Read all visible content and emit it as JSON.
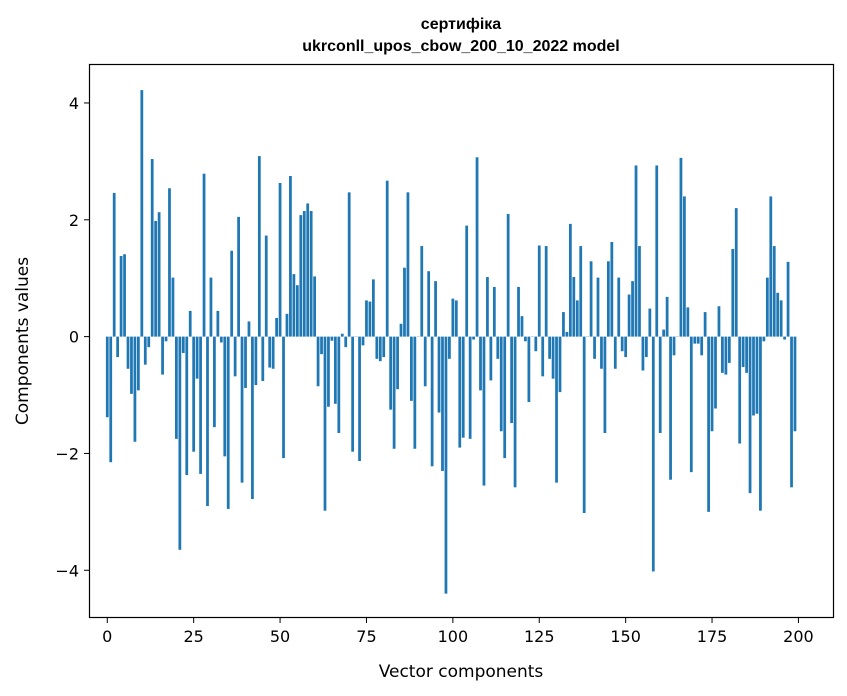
{
  "chart_data": {
    "type": "bar",
    "title": "сертифіка",
    "subtitle": "ukrconll_upos_cbow_200_10_2022 model",
    "xlabel": "Vector components",
    "ylabel": "Components values",
    "xlim": [
      -5,
      210
    ],
    "ylim": [
      -4.8,
      4.65
    ],
    "xticks": [
      0,
      25,
      50,
      75,
      100,
      125,
      150,
      175,
      200
    ],
    "yticks": [
      -4,
      -2,
      0,
      2,
      4
    ],
    "xtick_labels": [
      "0",
      "25",
      "50",
      "75",
      "100",
      "125",
      "150",
      "175",
      "200"
    ],
    "ytick_labels": [
      "−4",
      "−2",
      "0",
      "2",
      "4"
    ],
    "bar_color": "#1f77b4",
    "grid": false,
    "values": [
      -1.38,
      -2.15,
      2.46,
      -0.35,
      1.38,
      1.41,
      -0.55,
      -0.98,
      -1.8,
      -0.92,
      4.22,
      -0.48,
      -0.18,
      3.04,
      1.98,
      2.13,
      -0.65,
      -0.08,
      2.54,
      1.01,
      -1.75,
      -3.65,
      -0.28,
      -2.37,
      0.44,
      -1.97,
      -0.72,
      -2.35,
      2.79,
      -2.9,
      1.01,
      -1.55,
      0.44,
      -0.1,
      -2.05,
      -2.95,
      1.47,
      -0.68,
      2.05,
      -2.5,
      -0.88,
      0.26,
      -2.78,
      -0.83,
      3.09,
      -0.76,
      1.73,
      -0.53,
      -0.55,
      0.32,
      2.63,
      -2.08,
      0.39,
      2.75,
      1.07,
      0.88,
      2.08,
      2.15,
      2.28,
      2.15,
      1.03,
      -0.85,
      -0.3,
      -2.98,
      -1.2,
      -0.07,
      -1.15,
      -1.65,
      0.05,
      -0.18,
      2.47,
      -1.97,
      0.0,
      -2.13,
      -0.15,
      0.62,
      0.6,
      0.98,
      -0.38,
      -0.42,
      -0.35,
      2.67,
      -1.25,
      -1.92,
      -0.9,
      0.22,
      1.18,
      2.47,
      -1.1,
      -1.92,
      0.0,
      1.55,
      -0.85,
      1.12,
      -2.22,
      0.95,
      -1.3,
      -2.3,
      -4.4,
      -0.38,
      0.65,
      0.62,
      -1.9,
      -1.73,
      1.9,
      -1.75,
      -0.05,
      3.07,
      -0.92,
      -2.55,
      1.02,
      -0.75,
      0.85,
      -0.38,
      -1.62,
      -2.08,
      2.1,
      -1.48,
      -2.58,
      0.85,
      0.35,
      -0.08,
      -1.12,
      0.0,
      -0.25,
      1.56,
      -0.68,
      1.55,
      -0.38,
      -0.72,
      -2.5,
      -0.95,
      0.42,
      0.08,
      1.93,
      1.02,
      0.62,
      1.55,
      -3.02,
      0.0,
      1.29,
      -0.38,
      1.01,
      -0.55,
      -1.65,
      1.29,
      1.62,
      -0.55,
      1.01,
      -0.25,
      -0.35,
      0.72,
      0.95,
      2.93,
      1.55,
      -0.58,
      -0.35,
      0.48,
      -4.02,
      2.93,
      -1.65,
      0.12,
      0.68,
      -2.45,
      -0.32,
      0.0,
      3.06,
      2.4,
      0.5,
      -2.32,
      -0.12,
      -0.12,
      -0.32,
      0.42,
      -3.0,
      -1.62,
      -1.23,
      0.52,
      -0.62,
      -0.65,
      -0.45,
      1.5,
      2.2,
      -1.83,
      -0.52,
      -0.62,
      -2.68,
      -1.35,
      -1.32,
      -2.98,
      -0.08,
      1.01,
      2.4,
      1.55,
      0.75,
      0.62,
      -0.05,
      1.28,
      -2.58,
      -1.62
    ]
  }
}
